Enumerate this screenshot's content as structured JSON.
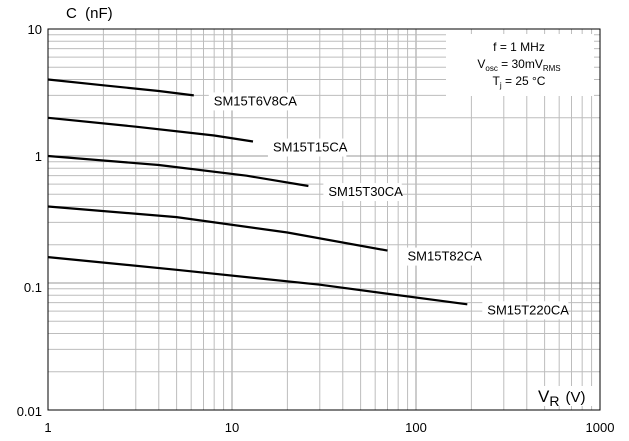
{
  "chart_data": {
    "type": "line",
    "xlabel": "V",
    "xlabel_sub": "R",
    "xlabel_unit": "(V)",
    "ylabel": "C  (nF)",
    "x_scale": "log",
    "y_scale": "log",
    "xlim": [
      1,
      1000
    ],
    "ylim": [
      0.01,
      10
    ],
    "x_ticks": [
      "1",
      "10",
      "100",
      "1000"
    ],
    "y_ticks": [
      "10",
      "1",
      "0.1",
      "0.01"
    ],
    "grid": true,
    "conditions": {
      "line1": "f = 1 MHz",
      "line2_pre": "V",
      "line2_sub": "osc",
      "line2_mid": " = 30mV",
      "line2_sub2": "RMS",
      "line3_pre": "T",
      "line3_sub": "j",
      "line3_post": " = 25 °C"
    },
    "series": [
      {
        "name": "SM15T6V8CA",
        "x": [
          1,
          2,
          4,
          6.2
        ],
        "y": [
          4.0,
          3.6,
          3.25,
          3.0
        ]
      },
      {
        "name": "SM15T15CA",
        "x": [
          1,
          3,
          8,
          13
        ],
        "y": [
          2.0,
          1.7,
          1.45,
          1.3
        ]
      },
      {
        "name": "SM15T30CA",
        "x": [
          1,
          4,
          12,
          26
        ],
        "y": [
          1.0,
          0.85,
          0.7,
          0.58
        ]
      },
      {
        "name": "SM15T82CA",
        "x": [
          1,
          5,
          20,
          70
        ],
        "y": [
          0.4,
          0.33,
          0.25,
          0.18
        ]
      },
      {
        "name": "SM15T220CA",
        "x": [
          1,
          5,
          30,
          190
        ],
        "y": [
          0.16,
          0.127,
          0.097,
          0.068
        ]
      }
    ]
  }
}
